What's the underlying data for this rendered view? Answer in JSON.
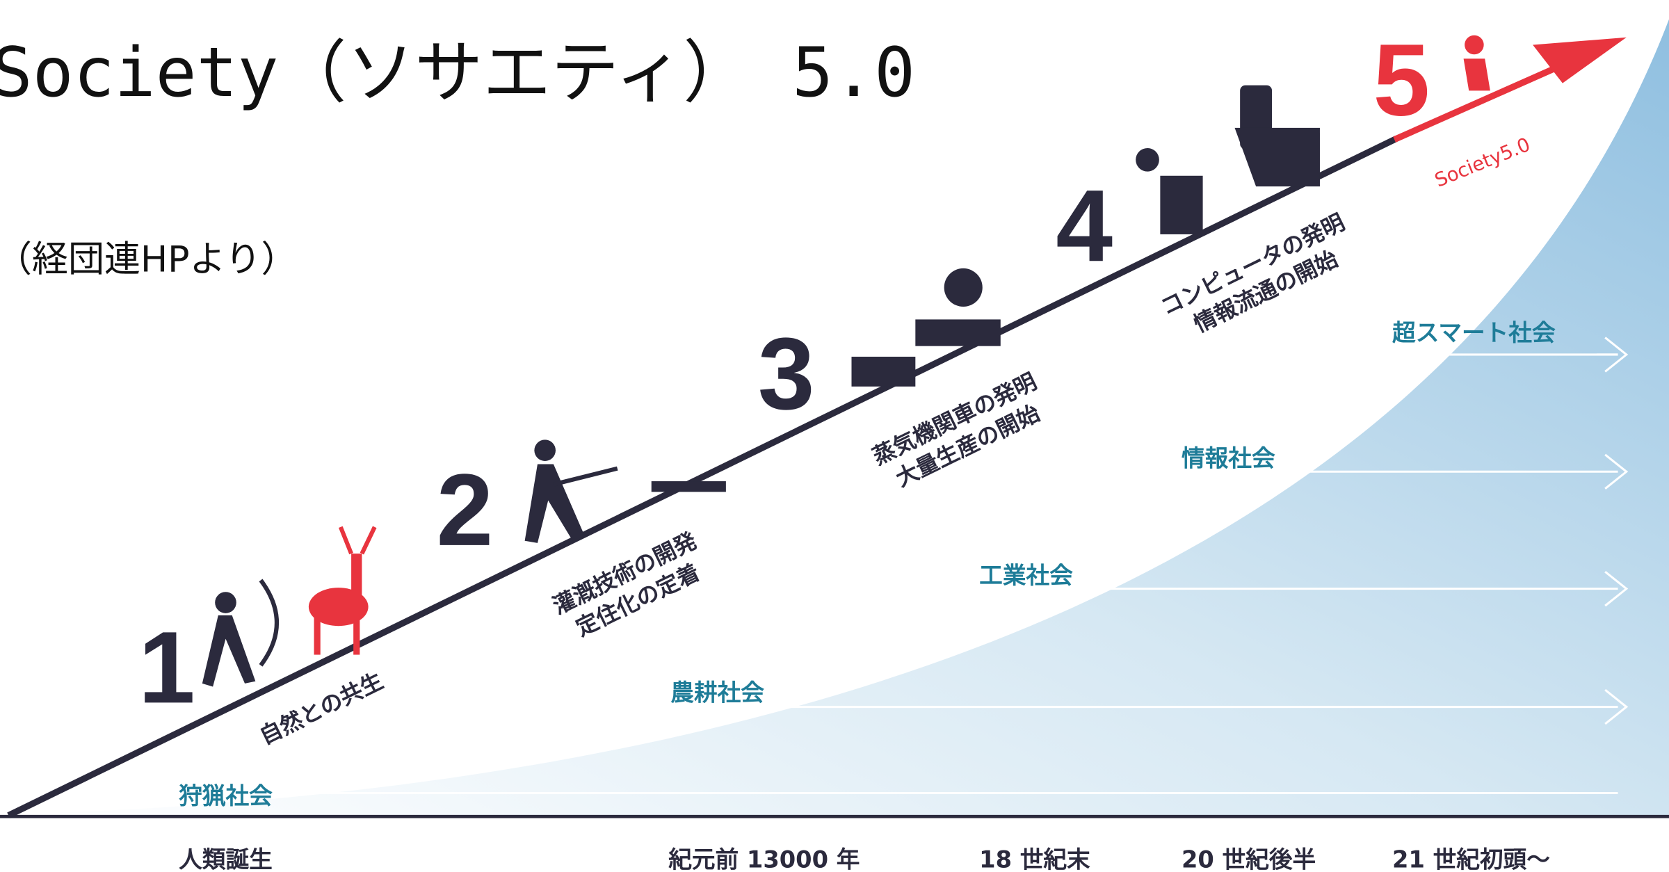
{
  "header": {
    "title": "Society（ソサエティ） 5.0",
    "source": "（経団連HPより）"
  },
  "stages": [
    {
      "number": "1",
      "caption": [
        "自然との共生"
      ],
      "society": "狩猟社会"
    },
    {
      "number": "2",
      "caption": [
        "灌漑技術の開発",
        "定住化の定着"
      ],
      "society": "農耕社会"
    },
    {
      "number": "3",
      "caption": [
        "蒸気機関車の発明",
        "大量生産の開始"
      ],
      "society": "工業社会"
    },
    {
      "number": "4",
      "caption": [
        "コンピュータの発明",
        "情報流通の開始"
      ],
      "society": "情報社会"
    },
    {
      "number": "5",
      "caption": [
        "Society5.0"
      ],
      "society": "超スマート社会"
    }
  ],
  "timeline": [
    "人類誕生",
    "紀元前 13000 年",
    "18 世紀末",
    "20 世紀後半",
    "21 世紀初頭～"
  ]
}
